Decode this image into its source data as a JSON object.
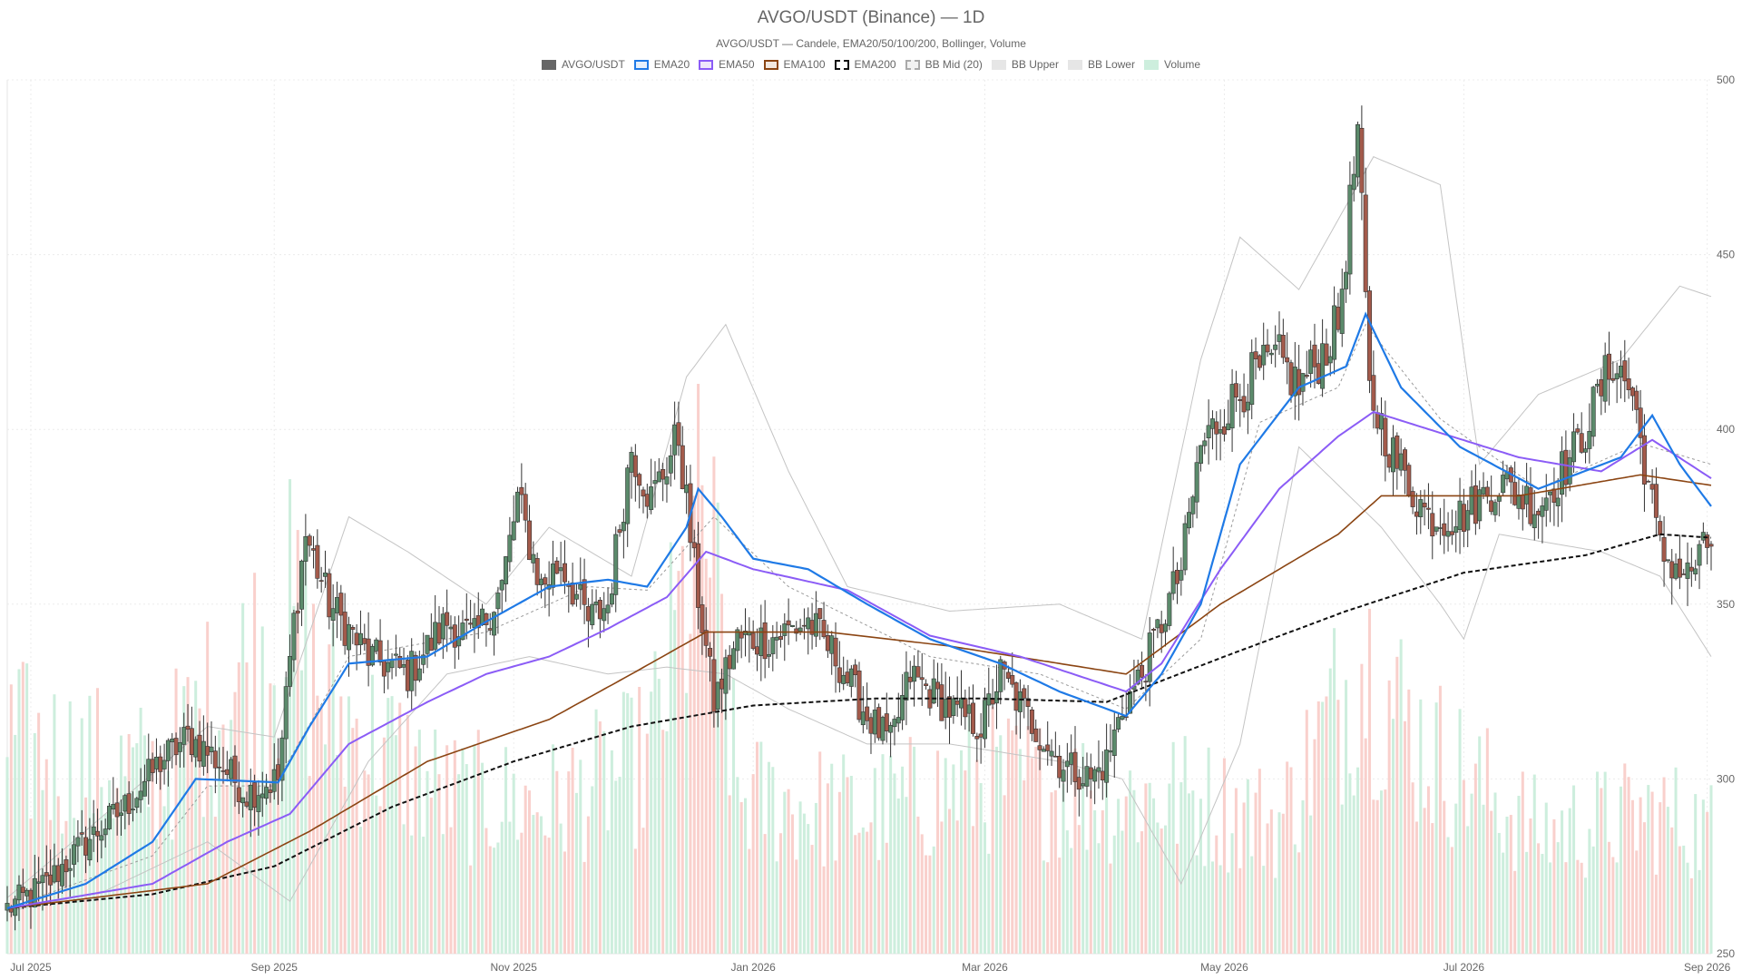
{
  "title": "AVGO/USDT (Binance) — 1D",
  "subtitle": "AVGO/USDT — Candele, EMA20/50/100/200, Bollinger, Volume",
  "legend": [
    {
      "label": "AVGO/USDT",
      "fill": "#666666",
      "stroke": "#666666",
      "dash": false
    },
    {
      "label": "EMA20",
      "fill": "#e6f0fc",
      "stroke": "#1f7ae6",
      "dash": false
    },
    {
      "label": "EMA50",
      "fill": "#efe6fb",
      "stroke": "#8b5cf6",
      "dash": false
    },
    {
      "label": "EMA100",
      "fill": "#f3e8df",
      "stroke": "#8b4513",
      "dash": false
    },
    {
      "label": "EMA200",
      "fill": "#ffffff",
      "stroke": "#111111",
      "dash": true
    },
    {
      "label": "BB Mid (20)",
      "fill": "#f2f2f2",
      "stroke": "#aaaaaa",
      "dash": true
    },
    {
      "label": "BB Upper",
      "fill": "#e6e6e6",
      "stroke": "#e6e6e6",
      "dash": false
    },
    {
      "label": "BB Lower",
      "fill": "#e6e6e6",
      "stroke": "#e6e6e6",
      "dash": false
    },
    {
      "label": "Volume",
      "fill": "#cdeedd",
      "stroke": "#cdeedd",
      "dash": false
    }
  ],
  "colors": {
    "up": "#5b8a6b",
    "down": "#a35a4b",
    "ema20": "#1f7ae6",
    "ema50": "#8b5cf6",
    "ema100": "#8b4513",
    "ema200": "#111111",
    "bb": "#c4c4c4",
    "bbmid": "#9a9a9a",
    "vol_up": "#cdeedd",
    "vol_down": "#f9d0cc",
    "grid": "#ececec"
  },
  "chart_data": {
    "type": "candlestick",
    "symbol": "AVGO/USDT",
    "interval": "1D",
    "date_range": [
      "2025-06-25",
      "2026-09-02"
    ],
    "ylim": [
      250,
      500
    ],
    "yticks": [
      250,
      300,
      350,
      400,
      450,
      500
    ],
    "xticks": [
      {
        "date": "2025-07-01",
        "label": "Jul 2025"
      },
      {
        "date": "2025-09-01",
        "label": "Sep 2025"
      },
      {
        "date": "2025-11-01",
        "label": "Nov 2025"
      },
      {
        "date": "2026-01-01",
        "label": "Jan 2026"
      },
      {
        "date": "2026-03-01",
        "label": "Mar 2026"
      },
      {
        "date": "2026-05-01",
        "label": "May 2026"
      },
      {
        "date": "2026-07-01",
        "label": "Jul 2026"
      },
      {
        "date": "2026-09-01",
        "label": "Sep 2026"
      }
    ],
    "close_path": [
      [
        "2025-06-25",
        263
      ],
      [
        "2025-07-05",
        270
      ],
      [
        "2025-07-15",
        282
      ],
      [
        "2025-07-25",
        292
      ],
      [
        "2025-08-03",
        305
      ],
      [
        "2025-08-10",
        312
      ],
      [
        "2025-08-16",
        307
      ],
      [
        "2025-08-25",
        296
      ],
      [
        "2025-09-02",
        300
      ],
      [
        "2025-09-06",
        345
      ],
      [
        "2025-09-09",
        370
      ],
      [
        "2025-09-15",
        350
      ],
      [
        "2025-09-25",
        335
      ],
      [
        "2025-10-05",
        330
      ],
      [
        "2025-10-15",
        345
      ],
      [
        "2025-10-22",
        340
      ],
      [
        "2025-10-29",
        355
      ],
      [
        "2025-11-02",
        380
      ],
      [
        "2025-11-08",
        355
      ],
      [
        "2025-11-13",
        362
      ],
      [
        "2025-11-20",
        345
      ],
      [
        "2025-11-25",
        350
      ],
      [
        "2025-12-01",
        395
      ],
      [
        "2025-12-06",
        380
      ],
      [
        "2025-12-13",
        398
      ],
      [
        "2025-12-17",
        360
      ],
      [
        "2025-12-22",
        322
      ],
      [
        "2025-12-28",
        340
      ],
      [
        "2026-01-05",
        340
      ],
      [
        "2026-01-15",
        345
      ],
      [
        "2026-01-22",
        335
      ],
      [
        "2026-01-30",
        318
      ],
      [
        "2026-02-05",
        310
      ],
      [
        "2026-02-10",
        330
      ],
      [
        "2026-02-20",
        320
      ],
      [
        "2026-02-28",
        315
      ],
      [
        "2026-03-05",
        330
      ],
      [
        "2026-03-13",
        316
      ],
      [
        "2026-03-20",
        305
      ],
      [
        "2026-03-28",
        300
      ],
      [
        "2026-04-01",
        305
      ],
      [
        "2026-04-05",
        320
      ],
      [
        "2026-04-10",
        330
      ],
      [
        "2026-04-20",
        360
      ],
      [
        "2026-04-25",
        395
      ],
      [
        "2026-05-01",
        405
      ],
      [
        "2026-05-08",
        415
      ],
      [
        "2026-05-15",
        420
      ],
      [
        "2026-05-20",
        412
      ],
      [
        "2026-05-25",
        420
      ],
      [
        "2026-05-30",
        430
      ],
      [
        "2026-06-04",
        485
      ],
      [
        "2026-06-07",
        410
      ],
      [
        "2026-06-14",
        390
      ],
      [
        "2026-06-22",
        375
      ],
      [
        "2026-06-30",
        375
      ],
      [
        "2026-07-10",
        385
      ],
      [
        "2026-07-20",
        378
      ],
      [
        "2026-07-30",
        395
      ],
      [
        "2026-08-08",
        420
      ],
      [
        "2026-08-13",
        410
      ],
      [
        "2026-08-20",
        365
      ],
      [
        "2026-08-27",
        358
      ],
      [
        "2026-09-02",
        368
      ]
    ],
    "ema20": [
      [
        "2025-06-25",
        263
      ],
      [
        "2025-07-15",
        270
      ],
      [
        "2025-08-01",
        282
      ],
      [
        "2025-08-12",
        300
      ],
      [
        "2025-09-02",
        299
      ],
      [
        "2025-09-10",
        315
      ],
      [
        "2025-09-20",
        333
      ],
      [
        "2025-10-10",
        335
      ],
      [
        "2025-10-25",
        345
      ],
      [
        "2025-11-10",
        355
      ],
      [
        "2025-11-25",
        357
      ],
      [
        "2025-12-05",
        355
      ],
      [
        "2025-12-15",
        372
      ],
      [
        "2025-12-18",
        383
      ],
      [
        "2025-12-24",
        375
      ],
      [
        "2026-01-01",
        363
      ],
      [
        "2026-01-15",
        360
      ],
      [
        "2026-01-30",
        350
      ],
      [
        "2026-02-15",
        340
      ],
      [
        "2026-03-05",
        333
      ],
      [
        "2026-03-20",
        325
      ],
      [
        "2026-04-06",
        318
      ],
      [
        "2026-04-15",
        330
      ],
      [
        "2026-04-25",
        350
      ],
      [
        "2026-05-05",
        390
      ],
      [
        "2026-05-20",
        412
      ],
      [
        "2026-06-01",
        418
      ],
      [
        "2026-06-06",
        433
      ],
      [
        "2026-06-15",
        412
      ],
      [
        "2026-06-30",
        395
      ],
      [
        "2026-07-20",
        383
      ],
      [
        "2026-08-10",
        392
      ],
      [
        "2026-08-18",
        404
      ],
      [
        "2026-08-25",
        390
      ],
      [
        "2026-09-02",
        378
      ]
    ],
    "ema50": [
      [
        "2025-06-25",
        263
      ],
      [
        "2025-08-01",
        270
      ],
      [
        "2025-08-20",
        282
      ],
      [
        "2025-09-05",
        290
      ],
      [
        "2025-09-20",
        310
      ],
      [
        "2025-10-10",
        322
      ],
      [
        "2025-10-25",
        330
      ],
      [
        "2025-11-10",
        335
      ],
      [
        "2025-11-25",
        343
      ],
      [
        "2025-12-10",
        352
      ],
      [
        "2025-12-20",
        365
      ],
      [
        "2026-01-01",
        360
      ],
      [
        "2026-01-25",
        354
      ],
      [
        "2026-02-15",
        341
      ],
      [
        "2026-03-10",
        335
      ],
      [
        "2026-04-06",
        325
      ],
      [
        "2026-04-15",
        333
      ],
      [
        "2026-04-30",
        360
      ],
      [
        "2026-05-15",
        383
      ],
      [
        "2026-05-30",
        398
      ],
      [
        "2026-06-08",
        405
      ],
      [
        "2026-06-25",
        399
      ],
      [
        "2026-07-15",
        392
      ],
      [
        "2026-08-05",
        388
      ],
      [
        "2026-08-18",
        397
      ],
      [
        "2026-09-02",
        386
      ]
    ],
    "ema100": [
      [
        "2025-06-25",
        263
      ],
      [
        "2025-08-15",
        270
      ],
      [
        "2025-09-10",
        285
      ],
      [
        "2025-10-10",
        305
      ],
      [
        "2025-11-10",
        317
      ],
      [
        "2025-12-01",
        330
      ],
      [
        "2025-12-20",
        342
      ],
      [
        "2026-01-20",
        342
      ],
      [
        "2026-02-20",
        338
      ],
      [
        "2026-04-06",
        330
      ],
      [
        "2026-04-30",
        350
      ],
      [
        "2026-05-30",
        370
      ],
      [
        "2026-06-10",
        381
      ],
      [
        "2026-07-15",
        381
      ],
      [
        "2026-08-15",
        387
      ],
      [
        "2026-09-02",
        384
      ]
    ],
    "ema200": [
      [
        "2025-06-25",
        263
      ],
      [
        "2025-08-01",
        267
      ],
      [
        "2025-09-01",
        275
      ],
      [
        "2025-10-01",
        292
      ],
      [
        "2025-11-01",
        305
      ],
      [
        "2025-12-01",
        315
      ],
      [
        "2026-01-01",
        321
      ],
      [
        "2026-02-01",
        323
      ],
      [
        "2026-03-01",
        323
      ],
      [
        "2026-04-01",
        322
      ],
      [
        "2026-05-01",
        335
      ],
      [
        "2026-06-01",
        348
      ],
      [
        "2026-07-01",
        359
      ],
      [
        "2026-08-01",
        364
      ],
      [
        "2026-08-20",
        370
      ],
      [
        "2026-09-02",
        369
      ]
    ],
    "bb_upper": [
      [
        "2025-06-25",
        266
      ],
      [
        "2025-07-20",
        290
      ],
      [
        "2025-08-15",
        315
      ],
      [
        "2025-09-01",
        312
      ],
      [
        "2025-09-20",
        375
      ],
      [
        "2025-10-05",
        365
      ],
      [
        "2025-10-25",
        350
      ],
      [
        "2025-11-10",
        372
      ],
      [
        "2025-12-01",
        358
      ],
      [
        "2025-12-15",
        415
      ],
      [
        "2025-12-25",
        430
      ],
      [
        "2026-01-10",
        388
      ],
      [
        "2026-01-25",
        355
      ],
      [
        "2026-02-20",
        348
      ],
      [
        "2026-03-20",
        350
      ],
      [
        "2026-04-10",
        340
      ],
      [
        "2026-04-25",
        420
      ],
      [
        "2026-05-05",
        455
      ],
      [
        "2026-05-20",
        440
      ],
      [
        "2026-06-08",
        478
      ],
      [
        "2026-06-25",
        470
      ],
      [
        "2026-07-05",
        390
      ],
      [
        "2026-07-20",
        410
      ],
      [
        "2026-08-10",
        420
      ],
      [
        "2026-08-25",
        441
      ],
      [
        "2026-09-02",
        438
      ]
    ],
    "bb_lower": [
      [
        "2025-06-25",
        262
      ],
      [
        "2025-07-20",
        268
      ],
      [
        "2025-08-15",
        282
      ],
      [
        "2025-09-05",
        265
      ],
      [
        "2025-09-25",
        305
      ],
      [
        "2025-10-15",
        330
      ],
      [
        "2025-11-05",
        335
      ],
      [
        "2025-11-25",
        330
      ],
      [
        "2025-12-10",
        332
      ],
      [
        "2025-12-25",
        330
      ],
      [
        "2026-01-10",
        320
      ],
      [
        "2026-01-30",
        310
      ],
      [
        "2026-02-20",
        310
      ],
      [
        "2026-03-20",
        305
      ],
      [
        "2026-04-05",
        300
      ],
      [
        "2026-04-20",
        270
      ],
      [
        "2026-05-05",
        310
      ],
      [
        "2026-05-20",
        395
      ],
      [
        "2026-06-10",
        372
      ],
      [
        "2026-06-25",
        350
      ],
      [
        "2026-07-01",
        340
      ],
      [
        "2026-07-10",
        370
      ],
      [
        "2026-08-05",
        365
      ],
      [
        "2026-08-20",
        358
      ],
      [
        "2026-09-02",
        335
      ]
    ],
    "bb_mid": [
      [
        "2025-06-25",
        263
      ],
      [
        "2025-08-01",
        278
      ],
      [
        "2025-08-15",
        298
      ],
      [
        "2025-09-01",
        298
      ],
      [
        "2025-09-20",
        335
      ],
      [
        "2025-10-25",
        342
      ],
      [
        "2025-11-20",
        355
      ],
      [
        "2025-12-05",
        354
      ],
      [
        "2025-12-22",
        375
      ],
      [
        "2026-01-10",
        355
      ],
      [
        "2026-02-15",
        335
      ],
      [
        "2026-03-15",
        330
      ],
      [
        "2026-04-06",
        320
      ],
      [
        "2026-04-25",
        340
      ],
      [
        "2026-05-10",
        402
      ],
      [
        "2026-05-30",
        412
      ],
      [
        "2026-06-06",
        430
      ],
      [
        "2026-06-25",
        403
      ],
      [
        "2026-07-20",
        383
      ],
      [
        "2026-08-15",
        396
      ],
      [
        "2026-09-02",
        390
      ]
    ],
    "volume_profile": [
      [
        "2025-06-25",
        0.24
      ],
      [
        "2025-08-01",
        0.2
      ],
      [
        "2025-09-05",
        0.38
      ],
      [
        "2025-09-15",
        0.28
      ],
      [
        "2025-10-15",
        0.18
      ],
      [
        "2025-11-10",
        0.17
      ],
      [
        "2025-12-05",
        0.22
      ],
      [
        "2025-12-20",
        0.5
      ],
      [
        "2025-12-28",
        0.18
      ],
      [
        "2026-01-30",
        0.16
      ],
      [
        "2026-03-01",
        0.2
      ],
      [
        "2026-04-01",
        0.18
      ],
      [
        "2026-04-20",
        0.18
      ],
      [
        "2026-05-15",
        0.15
      ],
      [
        "2026-06-05",
        0.34
      ],
      [
        "2026-06-20",
        0.24
      ],
      [
        "2026-07-20",
        0.14
      ],
      [
        "2026-08-20",
        0.16
      ],
      [
        "2026-09-02",
        0.14
      ]
    ]
  }
}
